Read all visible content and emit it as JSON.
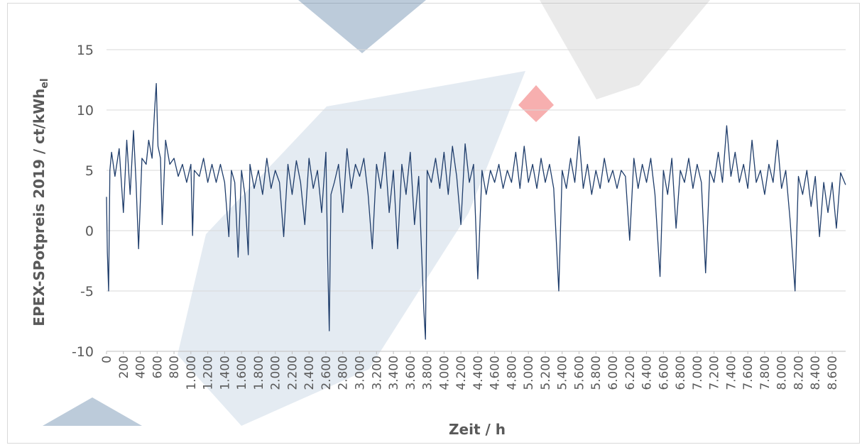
{
  "chart_data": {
    "type": "line",
    "xlabel": "Zeit / h",
    "ylabel": [
      "EPEX-SPotpreis 2019 / ct/kWh",
      "el"
    ],
    "color": "#1f3d6b",
    "grid": true,
    "xlim": [
      0,
      8760
    ],
    "ylim": [
      -10,
      15
    ],
    "yticks": [
      -10,
      -5,
      0,
      5,
      10,
      15
    ],
    "xticks": [
      0,
      200,
      400,
      600,
      800,
      {
        "value": 1000,
        "label": "1.000"
      },
      {
        "value": 1200,
        "label": "1.200"
      },
      {
        "value": 1400,
        "label": "1.400"
      },
      {
        "value": 1600,
        "label": "1.600"
      },
      {
        "value": 1800,
        "label": "1.800"
      },
      {
        "value": 2000,
        "label": "2.000"
      },
      {
        "value": 2200,
        "label": "2.200"
      },
      {
        "value": 2400,
        "label": "2.400"
      },
      {
        "value": 2600,
        "label": "2.600"
      },
      {
        "value": 2800,
        "label": "2.800"
      },
      {
        "value": 3000,
        "label": "3.000"
      },
      {
        "value": 3200,
        "label": "3.200"
      },
      {
        "value": 3400,
        "label": "3.400"
      },
      {
        "value": 3600,
        "label": "3.600"
      },
      {
        "value": 3800,
        "label": "3.800"
      },
      {
        "value": 4000,
        "label": "4.000"
      },
      {
        "value": 4200,
        "label": "4.200"
      },
      {
        "value": 4400,
        "label": "4.400"
      },
      {
        "value": 4600,
        "label": "4.600"
      },
      {
        "value": 4800,
        "label": "4.800"
      },
      {
        "value": 5000,
        "label": "5.000"
      },
      {
        "value": 5200,
        "label": "5.200"
      },
      {
        "value": 5400,
        "label": "5.400"
      },
      {
        "value": 5600,
        "label": "5.600"
      },
      {
        "value": 5800,
        "label": "5.800"
      },
      {
        "value": 6000,
        "label": "6.000"
      },
      {
        "value": 6200,
        "label": "6.200"
      },
      {
        "value": 6400,
        "label": "6.400"
      },
      {
        "value": 6600,
        "label": "6.600"
      },
      {
        "value": 6800,
        "label": "6.800"
      },
      {
        "value": 7000,
        "label": "7.000"
      },
      {
        "value": 7200,
        "label": "7.200"
      },
      {
        "value": 7400,
        "label": "7.400"
      },
      {
        "value": 7600,
        "label": "7.600"
      },
      {
        "value": 7800,
        "label": "7.800"
      },
      {
        "value": 8000,
        "label": "8.000"
      },
      {
        "value": 8200,
        "label": "8.200"
      },
      {
        "value": 8400,
        "label": "8.400"
      },
      {
        "value": 8600,
        "label": "8.600"
      }
    ],
    "x": [
      0,
      10,
      25,
      40,
      60,
      100,
      150,
      200,
      240,
      280,
      320,
      350,
      380,
      420,
      470,
      500,
      540,
      570,
      590,
      610,
      640,
      660,
      700,
      750,
      800,
      850,
      900,
      950,
      1000,
      1020,
      1040,
      1100,
      1150,
      1200,
      1250,
      1300,
      1350,
      1400,
      1450,
      1480,
      1520,
      1560,
      1600,
      1640,
      1680,
      1700,
      1750,
      1800,
      1850,
      1900,
      1950,
      2000,
      2050,
      2100,
      2150,
      2200,
      2250,
      2300,
      2350,
      2400,
      2450,
      2500,
      2550,
      2600,
      2620,
      2640,
      2660,
      2700,
      2750,
      2800,
      2850,
      2900,
      2950,
      3000,
      3050,
      3100,
      3150,
      3200,
      3250,
      3300,
      3350,
      3400,
      3450,
      3500,
      3550,
      3600,
      3650,
      3700,
      3760,
      3780,
      3800,
      3850,
      3900,
      3950,
      4000,
      4050,
      4100,
      4150,
      4200,
      4250,
      4300,
      4350,
      4400,
      4450,
      4500,
      4550,
      4600,
      4650,
      4700,
      4750,
      4800,
      4850,
      4900,
      4950,
      5000,
      5050,
      5100,
      5150,
      5200,
      5250,
      5300,
      5360,
      5400,
      5450,
      5500,
      5550,
      5600,
      5650,
      5700,
      5750,
      5800,
      5850,
      5900,
      5950,
      6000,
      6050,
      6100,
      6150,
      6200,
      6250,
      6300,
      6350,
      6400,
      6450,
      6500,
      6560,
      6600,
      6650,
      6700,
      6750,
      6800,
      6850,
      6900,
      6950,
      7000,
      7050,
      7100,
      7150,
      7200,
      7250,
      7300,
      7350,
      7400,
      7450,
      7500,
      7550,
      7600,
      7650,
      7700,
      7750,
      7800,
      7850,
      7900,
      7950,
      8000,
      8050,
      8100,
      8160,
      8200,
      8250,
      8300,
      8350,
      8400,
      8450,
      8500,
      8550,
      8600,
      8650,
      8700,
      8759
    ],
    "values": [
      2.8,
      -1.8,
      -5,
      5,
      6.5,
      4.5,
      6.8,
      1.5,
      7.5,
      3,
      8.3,
      4,
      -1.5,
      6,
      5.5,
      7.5,
      6,
      10,
      12.2,
      7,
      6,
      0.5,
      7.5,
      5.5,
      6,
      4.5,
      5.5,
      4,
      5.5,
      -0.4,
      5,
      4.5,
      6,
      4,
      5.5,
      4,
      5.5,
      4,
      -0.5,
      5,
      4,
      -2.2,
      5,
      3,
      -2,
      5.5,
      3.5,
      5,
      3,
      6,
      3.5,
      5,
      4,
      -0.5,
      5.5,
      3,
      5.8,
      4,
      0.5,
      6,
      3.5,
      5,
      1.5,
      6.5,
      -2,
      -8.3,
      3,
      4,
      5.5,
      1.5,
      6.8,
      3.5,
      5.5,
      4.5,
      6,
      3,
      -1.5,
      5.5,
      3.5,
      6.5,
      1.5,
      5,
      -1.5,
      5.5,
      3,
      6.5,
      0.5,
      4.5,
      -6.5,
      -9,
      5,
      4,
      6,
      3.5,
      6.5,
      3,
      7,
      4.5,
      0.5,
      7.2,
      4,
      5.5,
      -4,
      5,
      3,
      5,
      4,
      5.5,
      3.5,
      5,
      4,
      6.5,
      3.5,
      7,
      4,
      5.5,
      3.5,
      6,
      4,
      5.5,
      3.5,
      -5,
      5,
      3.5,
      6,
      4,
      7.8,
      3.5,
      5.5,
      3,
      5,
      3.5,
      6,
      4,
      5,
      3.5,
      5,
      4.5,
      -0.8,
      6,
      3.5,
      5.5,
      4,
      6,
      3,
      -3.8,
      5,
      3,
      6,
      0.2,
      5,
      4,
      6,
      3.5,
      5.5,
      4,
      -3.5,
      5,
      4,
      6.5,
      4,
      8.7,
      4.5,
      6.5,
      4,
      5.5,
      3.5,
      7.5,
      4,
      5,
      3,
      5.5,
      4,
      7.5,
      3.5,
      5,
      1,
      -5,
      4.5,
      3,
      5,
      2,
      4.5,
      -0.5,
      4,
      1.5,
      4,
      0.2,
      4.8,
      3.8
    ]
  }
}
